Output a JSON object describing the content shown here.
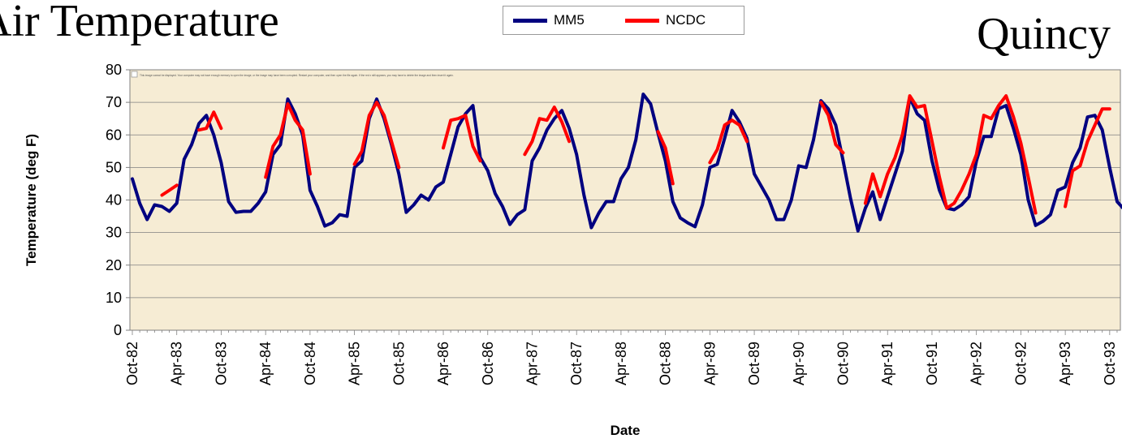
{
  "header": {
    "title": "Air Temperature",
    "location": "Quincy"
  },
  "legend": [
    {
      "name": "MM5",
      "color": "#000080"
    },
    {
      "name": "NCDC",
      "color": "#ff0000"
    }
  ],
  "plot_notice": "This image cannot be displayed. Your computer may not have enough memory to open the image, or the image may have been corrupted. Restart your computer, and then open the file again. If the red x still appears, you may have to delete the image and then insert it again.",
  "chart_data": {
    "type": "line",
    "title": "Air Temperature",
    "xlabel": "Date",
    "ylabel": "Temperature (deg F)",
    "ylim": [
      0,
      80
    ],
    "yticks": [
      0,
      10,
      20,
      30,
      40,
      50,
      60,
      70,
      80
    ],
    "grid": "horizontal",
    "legend_position": "top-center",
    "plot_background": "#f6ecd4",
    "x_start": "Oct-82",
    "x_tick_labels": [
      "Oct-82",
      "Apr-83",
      "Oct-83",
      "Apr-84",
      "Oct-84",
      "Apr-85",
      "Oct-85",
      "Apr-86",
      "Oct-86",
      "Apr-87",
      "Oct-87",
      "Apr-88",
      "Oct-88",
      "Apr-89",
      "Oct-89",
      "Apr-90",
      "Oct-90",
      "Apr-91",
      "Oct-91",
      "Apr-92",
      "Oct-92",
      "Apr-93",
      "Oct-93"
    ],
    "series": [
      {
        "name": "MM5",
        "color": "#000080",
        "values": [
          46.5,
          39,
          34,
          38.5,
          38,
          36.5,
          39,
          52.5,
          57,
          63.5,
          66,
          60,
          51.5,
          39.5,
          36.2,
          36.5,
          36.5,
          39,
          42.5,
          54,
          57,
          71,
          66.5,
          60,
          43,
          38,
          32,
          33,
          35.5,
          35,
          50,
          52,
          65,
          71,
          65,
          57,
          48,
          36.2,
          38.5,
          41.5,
          40,
          44,
          45.5,
          54,
          62.5,
          66.5,
          69,
          53,
          49,
          42,
          38,
          32.5,
          35.5,
          37,
          52,
          56,
          61.5,
          65,
          67.5,
          62,
          54,
          41.5,
          31.5,
          36,
          39.5,
          39.5,
          46.5,
          50,
          58.5,
          72.5,
          69.5,
          60.5,
          52,
          39.5,
          34.5,
          33,
          31.8,
          38.5,
          50,
          51,
          59,
          67.5,
          64,
          59,
          48,
          44,
          40,
          34,
          34,
          40,
          50.5,
          50,
          58.5,
          70.5,
          68,
          63,
          52,
          40.5,
          30.5,
          37.5,
          42.5,
          34,
          41,
          48,
          55,
          71.5,
          66.5,
          64.5,
          52,
          43,
          37.5,
          37,
          38.5,
          41,
          52,
          59.5,
          59.5,
          68,
          69,
          62,
          54,
          40,
          32.2,
          33.5,
          35.5,
          43,
          44,
          51.5,
          56,
          65.5,
          66,
          61.5,
          50,
          39.5,
          37
        ]
      },
      {
        "name": "NCDC",
        "color": "#ff0000",
        "values": [
          null,
          null,
          null,
          null,
          41.5,
          43,
          44.5,
          null,
          null,
          61.5,
          62,
          67,
          62,
          null,
          null,
          null,
          null,
          null,
          47,
          56.5,
          60,
          69.5,
          64.5,
          61.5,
          48,
          null,
          null,
          null,
          null,
          null,
          51,
          55,
          66,
          70,
          66,
          58,
          50,
          null,
          null,
          null,
          null,
          null,
          56,
          64.5,
          65,
          66,
          56.5,
          52,
          null,
          null,
          null,
          null,
          null,
          54,
          58,
          65,
          64.5,
          68.5,
          64,
          58,
          null,
          null,
          null,
          null,
          null,
          null,
          null,
          null,
          null,
          null,
          null,
          61,
          56,
          45,
          null,
          null,
          null,
          null,
          51.5,
          55.5,
          63,
          64.5,
          63,
          58,
          null,
          null,
          null,
          null,
          null,
          null,
          null,
          null,
          null,
          70,
          66,
          57,
          54.5,
          null,
          null,
          39,
          48,
          41,
          48,
          53,
          60,
          72,
          68.5,
          69,
          58,
          47,
          37.5,
          39,
          43,
          48,
          54,
          66,
          65,
          69,
          72,
          65.5,
          57.5,
          47,
          36,
          null,
          null,
          null,
          38,
          49,
          50.5,
          58,
          63,
          68,
          68
        ]
      }
    ]
  }
}
